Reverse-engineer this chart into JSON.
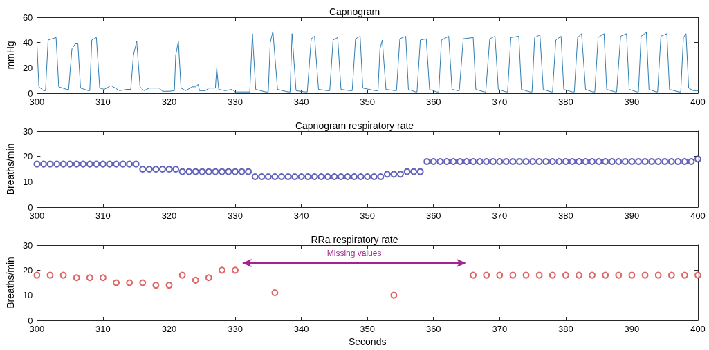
{
  "chart_data": [
    {
      "type": "line",
      "title": "Capnogram",
      "ylabel": "mmHg",
      "color": "#2f7db3",
      "marker": "none",
      "grid": false,
      "x": [
        300,
        300.3,
        301,
        301.3,
        301.7,
        302.9,
        303.3,
        304.5,
        304.8,
        305.3,
        305.8,
        306.2,
        306.6,
        307.8,
        308,
        308.3,
        309,
        309.5,
        310.2,
        311.2,
        312.5,
        313.6,
        314.2,
        314.6,
        315.1,
        315.6,
        316.2,
        317,
        318.5,
        319,
        320,
        320.8,
        321,
        321.4,
        321.8,
        322.5,
        323.5,
        324,
        324.4,
        324.6,
        325.5,
        326,
        327,
        327.2,
        327.5,
        328.5,
        329.5,
        330,
        331.5,
        332.2,
        332.6,
        333.1,
        334.6,
        335,
        335.3,
        335.7,
        336.4,
        338,
        338.3,
        338.6,
        339.2,
        340.6,
        340.9,
        341.5,
        342,
        342.6,
        344,
        344.3,
        344.8,
        345.5,
        346,
        347.4,
        347.7,
        348.2,
        348.9,
        349.3,
        351.2,
        351.6,
        351.9,
        352.25,
        352.8,
        354.2,
        354.4,
        354.9,
        355.8,
        356.2,
        357.3,
        357.5,
        358,
        358.9,
        359.4,
        360.5,
        360.8,
        361.2,
        362.3,
        362.8,
        363.7,
        363.9,
        364.5,
        366,
        366.4,
        367.7,
        367.9,
        368.5,
        369.3,
        369.8,
        371,
        371.2,
        371.7,
        372.9,
        373.3,
        374.6,
        374.9,
        375.3,
        376.1,
        376.6,
        377.8,
        378,
        378.5,
        379.3,
        379.7,
        381,
        381.3,
        381.8,
        382.4,
        383,
        384.1,
        384.4,
        384.9,
        385.8,
        386.2,
        387.5,
        387.7,
        388.3,
        389.2,
        389.6,
        390.8,
        391,
        391.4,
        392.2,
        392.6,
        393.7,
        393.9,
        394.4,
        395.3,
        395.7,
        397.1,
        397.4,
        397.8,
        398.2,
        398.6,
        399.3,
        400
      ],
      "values": [
        40,
        5,
        2,
        2,
        42,
        44,
        5,
        3,
        3,
        35,
        39,
        39,
        4,
        2,
        2,
        42,
        44,
        4,
        3,
        6,
        2,
        3,
        3,
        30,
        41,
        5,
        2,
        4,
        4,
        1.5,
        1.5,
        2,
        30,
        41,
        4,
        2,
        5,
        5,
        7,
        2,
        2,
        4,
        4,
        20,
        3,
        2,
        3,
        1,
        1,
        1,
        47,
        3,
        1,
        1,
        40,
        49,
        3,
        1,
        1,
        47,
        2,
        1,
        1,
        43,
        45,
        3,
        2,
        2,
        42,
        44,
        3,
        2,
        2,
        43,
        45,
        4,
        2,
        2,
        35,
        42,
        3,
        2,
        2,
        43,
        45,
        3,
        1,
        1,
        42,
        43,
        3,
        1,
        1,
        42,
        45,
        3,
        2,
        2,
        43,
        44,
        3,
        1,
        1,
        43,
        45,
        3,
        1,
        1,
        44,
        45,
        3,
        1,
        1,
        44,
        46,
        3,
        1,
        1,
        42,
        45,
        3,
        1,
        1,
        44,
        47,
        3,
        1,
        1,
        44,
        47,
        3,
        1,
        1,
        45,
        47,
        3,
        1,
        1,
        45,
        48,
        3,
        1,
        1,
        45,
        47,
        3,
        1,
        1,
        44,
        47,
        4,
        2,
        2
      ],
      "xlim": [
        300,
        400
      ],
      "xticks": [
        300,
        310,
        320,
        330,
        340,
        350,
        360,
        370,
        380,
        390,
        400
      ],
      "ylim": [
        0,
        60
      ],
      "yticks": [
        0,
        20,
        40,
        60
      ]
    },
    {
      "type": "scatter",
      "title": "Capnogram respiratory rate",
      "ylabel": "Breaths/min",
      "color": "#3b3ba8",
      "marker": "circle",
      "grid": false,
      "x": [
        300,
        301,
        302,
        303,
        304,
        305,
        306,
        307,
        308,
        309,
        310,
        311,
        312,
        313,
        314,
        315,
        316,
        317,
        318,
        319,
        320,
        321,
        322,
        323,
        324,
        325,
        326,
        327,
        328,
        329,
        330,
        331,
        332,
        333,
        334,
        335,
        336,
        337,
        338,
        339,
        340,
        341,
        342,
        343,
        344,
        345,
        346,
        347,
        348,
        349,
        350,
        351,
        352,
        353,
        354,
        355,
        356,
        357,
        358,
        359,
        360,
        361,
        362,
        363,
        364,
        365,
        366,
        367,
        368,
        369,
        370,
        371,
        372,
        373,
        374,
        375,
        376,
        377,
        378,
        379,
        380,
        381,
        382,
        383,
        384,
        385,
        386,
        387,
        388,
        389,
        390,
        391,
        392,
        393,
        394,
        395,
        396,
        397,
        398,
        399,
        400
      ],
      "values": [
        17,
        17,
        17,
        17,
        17,
        17,
        17,
        17,
        17,
        17,
        17,
        17,
        17,
        17,
        17,
        17,
        15,
        15,
        15,
        15,
        15,
        15,
        14,
        14,
        14,
        14,
        14,
        14,
        14,
        14,
        14,
        14,
        14,
        12,
        12,
        12,
        12,
        12,
        12,
        12,
        12,
        12,
        12,
        12,
        12,
        12,
        12,
        12,
        12,
        12,
        12,
        12,
        12,
        13,
        13,
        13,
        14,
        14,
        14,
        18,
        18,
        18,
        18,
        18,
        18,
        18,
        18,
        18,
        18,
        18,
        18,
        18,
        18,
        18,
        18,
        18,
        18,
        18,
        18,
        18,
        18,
        18,
        18,
        18,
        18,
        18,
        18,
        18,
        18,
        18,
        18,
        18,
        18,
        18,
        18,
        18,
        18,
        18,
        18,
        18,
        19
      ],
      "xlim": [
        300,
        400
      ],
      "xticks": [
        300,
        310,
        320,
        330,
        340,
        350,
        360,
        370,
        380,
        390,
        400
      ],
      "ylim": [
        0,
        30
      ],
      "yticks": [
        0,
        10,
        20,
        30
      ]
    },
    {
      "type": "scatter",
      "title": "RRa respiratory rate",
      "ylabel": "Breaths/min",
      "xlabel": "Seconds",
      "color": "#d6403e",
      "marker": "circle",
      "grid": false,
      "x": [
        300,
        302,
        304,
        306,
        308,
        310,
        312,
        314,
        316,
        318,
        320,
        322,
        324,
        326,
        328,
        330,
        336,
        354,
        366,
        368,
        370,
        372,
        374,
        376,
        378,
        380,
        382,
        384,
        386,
        388,
        390,
        392,
        394,
        396,
        398,
        400
      ],
      "values": [
        18,
        18,
        18,
        17,
        17,
        17,
        15,
        15,
        15,
        14,
        14,
        18,
        16,
        17,
        20,
        20,
        11,
        10,
        18,
        18,
        18,
        18,
        18,
        18,
        18,
        18,
        18,
        18,
        18,
        18,
        18,
        18,
        18,
        18,
        18,
        18
      ],
      "annotations": [
        "Missing values"
      ],
      "xlim": [
        300,
        400
      ],
      "xticks": [
        300,
        310,
        320,
        330,
        340,
        350,
        360,
        370,
        380,
        390,
        400
      ],
      "ylim": [
        0,
        30
      ],
      "yticks": [
        0,
        10,
        20,
        30
      ]
    }
  ]
}
